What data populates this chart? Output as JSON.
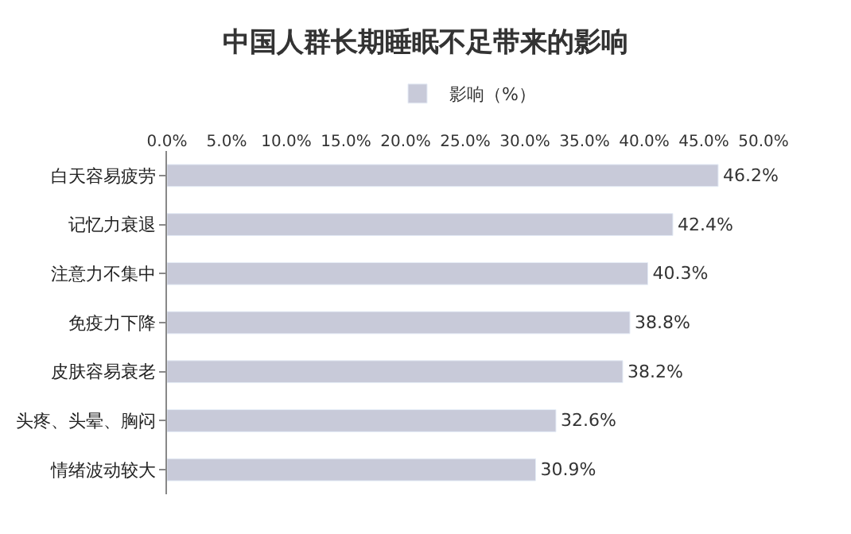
{
  "chart_data": {
    "type": "bar",
    "orientation": "horizontal",
    "title": "中国人群长期睡眠不足带来的影响",
    "categories": [
      "白天容易疲劳",
      "记忆力衰退",
      "注意力不集中",
      "免疫力下降",
      "皮肤容易衰老",
      "头疼、头晕、胸闷",
      "情绪波动较大"
    ],
    "series": [
      {
        "name": "影响（%）",
        "color": "#c8cad9",
        "values": [
          46.2,
          42.4,
          40.3,
          38.8,
          38.2,
          32.6,
          30.9
        ],
        "value_labels": [
          "46.2%",
          "42.4%",
          "40.3%",
          "38.8%",
          "38.2%",
          "32.6%",
          "30.9%"
        ]
      }
    ],
    "xlim": [
      0,
      50
    ],
    "xticks": [
      {
        "value": 0,
        "label": "0.0%"
      },
      {
        "value": 5,
        "label": "5.0%"
      },
      {
        "value": 10,
        "label": "10.0%"
      },
      {
        "value": 15,
        "label": "15.0%"
      },
      {
        "value": 20,
        "label": "20.0%"
      },
      {
        "value": 25,
        "label": "25.0%"
      },
      {
        "value": 30,
        "label": "30.0%"
      },
      {
        "value": 35,
        "label": "35.0%"
      },
      {
        "value": 40,
        "label": "40.0%"
      },
      {
        "value": 45,
        "label": "45.0%"
      },
      {
        "value": 50,
        "label": "50.0%"
      }
    ],
    "legend": "top"
  }
}
